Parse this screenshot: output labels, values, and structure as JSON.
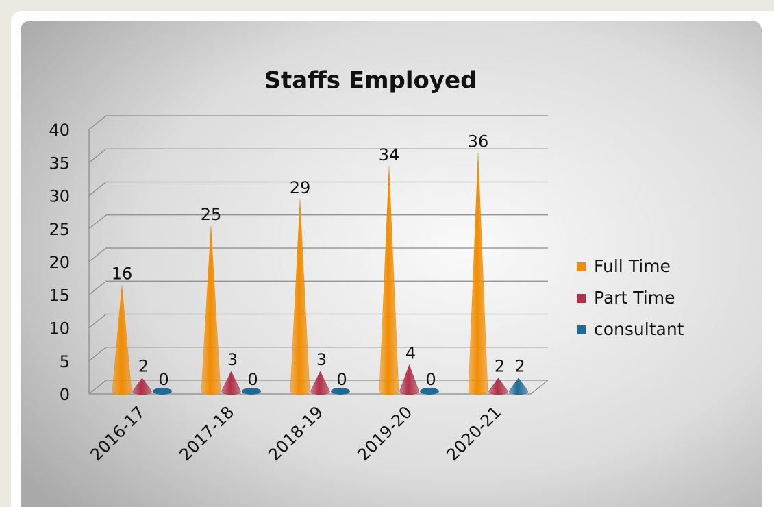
{
  "chart_data": {
    "type": "bar",
    "title": "Staffs Employed",
    "categories": [
      "2016-17",
      "2017-18",
      "2018-19",
      "2019-20",
      "2020-21"
    ],
    "series": [
      {
        "name": "Full Time",
        "color": "#f28c00",
        "values": [
          16,
          25,
          29,
          34,
          36
        ]
      },
      {
        "name": "Part Time",
        "color": "#b03048",
        "values": [
          2,
          3,
          3,
          4,
          2
        ]
      },
      {
        "name": "consultant",
        "color": "#1f6a96",
        "values": [
          0,
          0,
          0,
          0,
          2
        ]
      }
    ],
    "ylim": [
      0,
      40
    ],
    "yticks": [
      0,
      5,
      10,
      15,
      20,
      25,
      30,
      35,
      40
    ],
    "grid": true,
    "legend": "right"
  }
}
